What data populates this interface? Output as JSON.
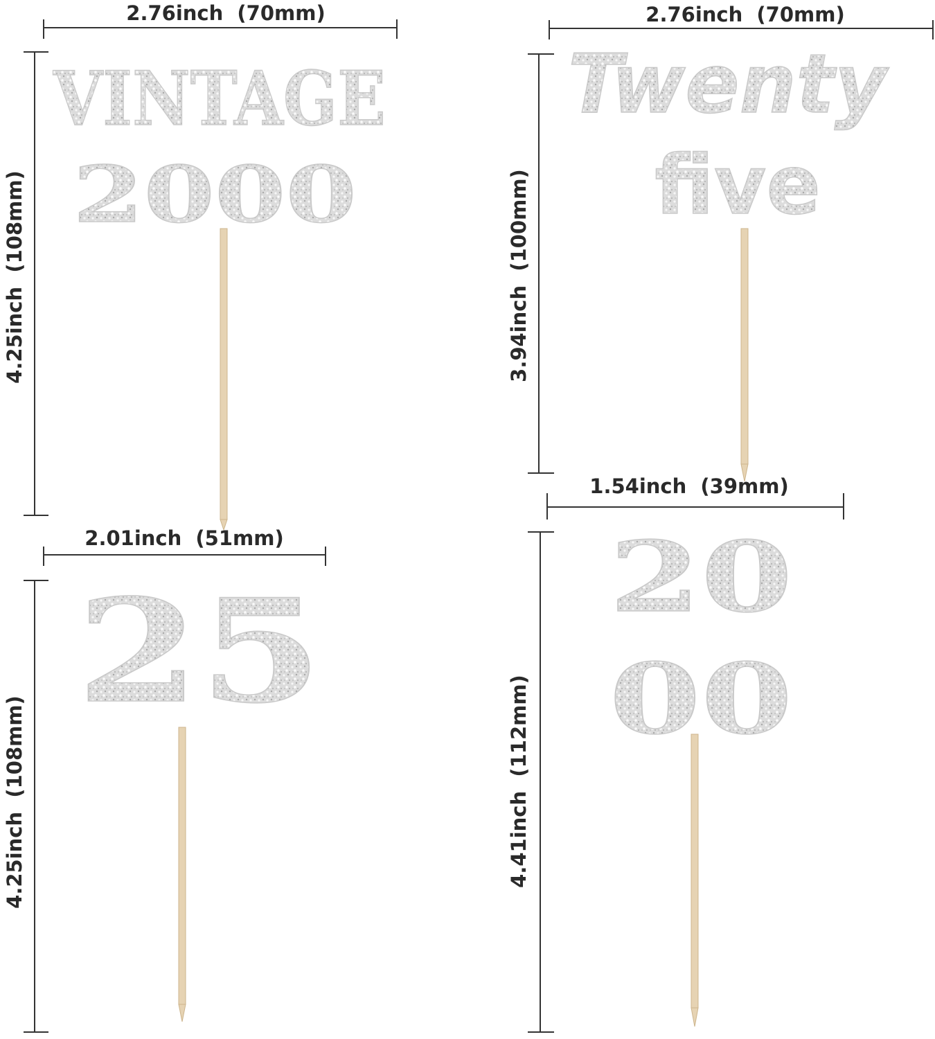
{
  "toppers": [
    {
      "name": "vintage-2000",
      "lines": [
        "VINTAGE",
        "2000"
      ],
      "width_label": "2.76inch  (70mm)",
      "height_label": "4.25inch  (108mm)"
    },
    {
      "name": "twenty-five",
      "lines": [
        "Twenty",
        "five"
      ],
      "width_label": "2.76inch  (70mm)",
      "height_label": "3.94inch  (100mm)"
    },
    {
      "name": "25",
      "lines": [
        "25"
      ],
      "width_label": "2.01inch  (51mm)",
      "height_label": "4.25inch  (108mm)"
    },
    {
      "name": "2000-stacked",
      "lines": [
        "20",
        "00"
      ],
      "width_label": "1.54inch  (39mm)",
      "height_label": "4.41inch  (112mm)"
    }
  ],
  "colors": {
    "glitter": "#d9d9d9",
    "stick": "#e6d3b3",
    "dimension_line": "#333333"
  }
}
